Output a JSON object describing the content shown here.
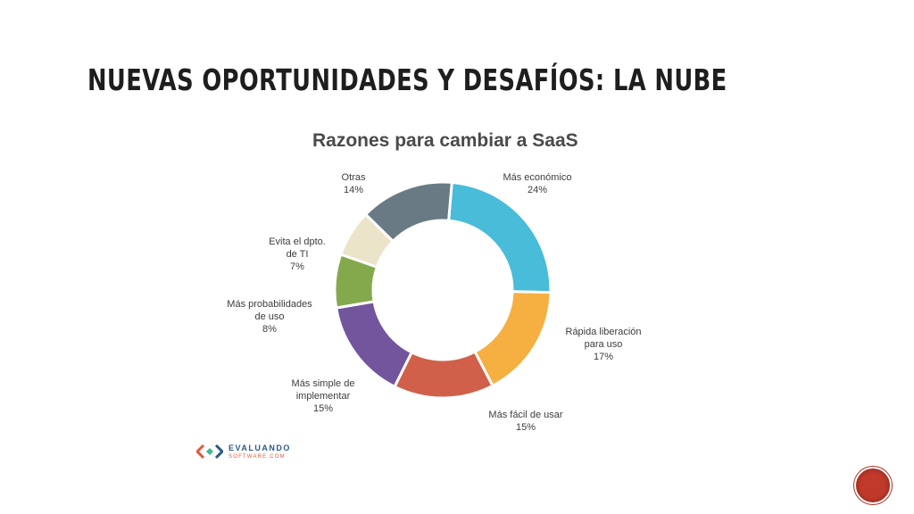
{
  "slide": {
    "title": "Nuevas oportunidades y desafíos: la nube"
  },
  "logo": {
    "name": "EVALUANDO",
    "sub": "SOFTWARE.COM"
  },
  "chart_data": {
    "type": "pie",
    "variant": "donut",
    "title": "Razones para cambiar a SaaS",
    "unit": "%",
    "slices": [
      {
        "label": "Más económico",
        "value": 24,
        "value_label": "24%",
        "color": "#48bcd8"
      },
      {
        "label": "Rápida liberación para uso",
        "value": 17,
        "value_label": "17%",
        "color": "#f5b041"
      },
      {
        "label": "Más fácil de usar",
        "value": 15,
        "value_label": "15%",
        "color": "#d0604a"
      },
      {
        "label": "Más simple de implementar",
        "value": 15,
        "value_label": "15%",
        "color": "#73559e"
      },
      {
        "label": "Más probabilidades de uso",
        "value": 8,
        "value_label": "8%",
        "color": "#84a94d"
      },
      {
        "label": "Evita el dpto. de TI",
        "value": 7,
        "value_label": "7%",
        "color": "#ece4c8"
      },
      {
        "label": "Otras",
        "value": 14,
        "value_label": "14%",
        "color": "#6a7a84"
      }
    ]
  }
}
